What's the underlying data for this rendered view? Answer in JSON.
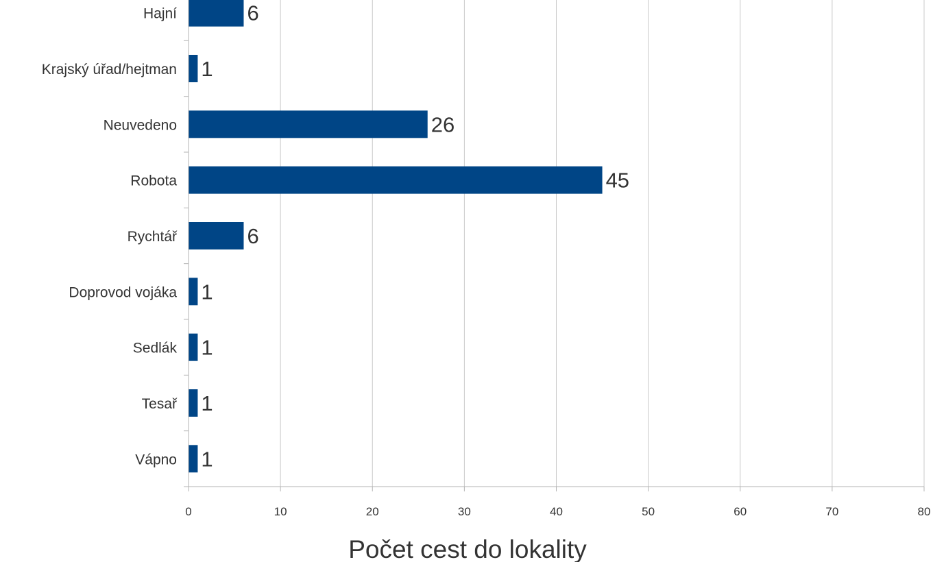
{
  "chart_data": {
    "type": "bar",
    "orientation": "horizontal",
    "categories": [
      "Hajní",
      "Krajský úřad/hejtman",
      "Neuvedeno",
      "Robota",
      "Rychtář",
      "Doprovod vojáka",
      "Sedlák",
      "Tesař",
      "Vápno"
    ],
    "values": [
      6,
      1,
      26,
      45,
      6,
      1,
      1,
      1,
      1
    ],
    "value_labels": [
      "6",
      "1",
      "26",
      "45",
      "6",
      "1",
      "1",
      "1",
      "1"
    ],
    "xlabel": "Počet cest do lokality",
    "ylabel": "",
    "xlim": [
      0,
      80
    ],
    "x_ticks": [
      0,
      10,
      20,
      30,
      40,
      50,
      60,
      70,
      80
    ],
    "x_tick_labels": [
      "0",
      "10",
      "20",
      "30",
      "40",
      "50",
      "60",
      "70",
      "80"
    ],
    "grid": "vertical",
    "bar_color": "#004586"
  }
}
